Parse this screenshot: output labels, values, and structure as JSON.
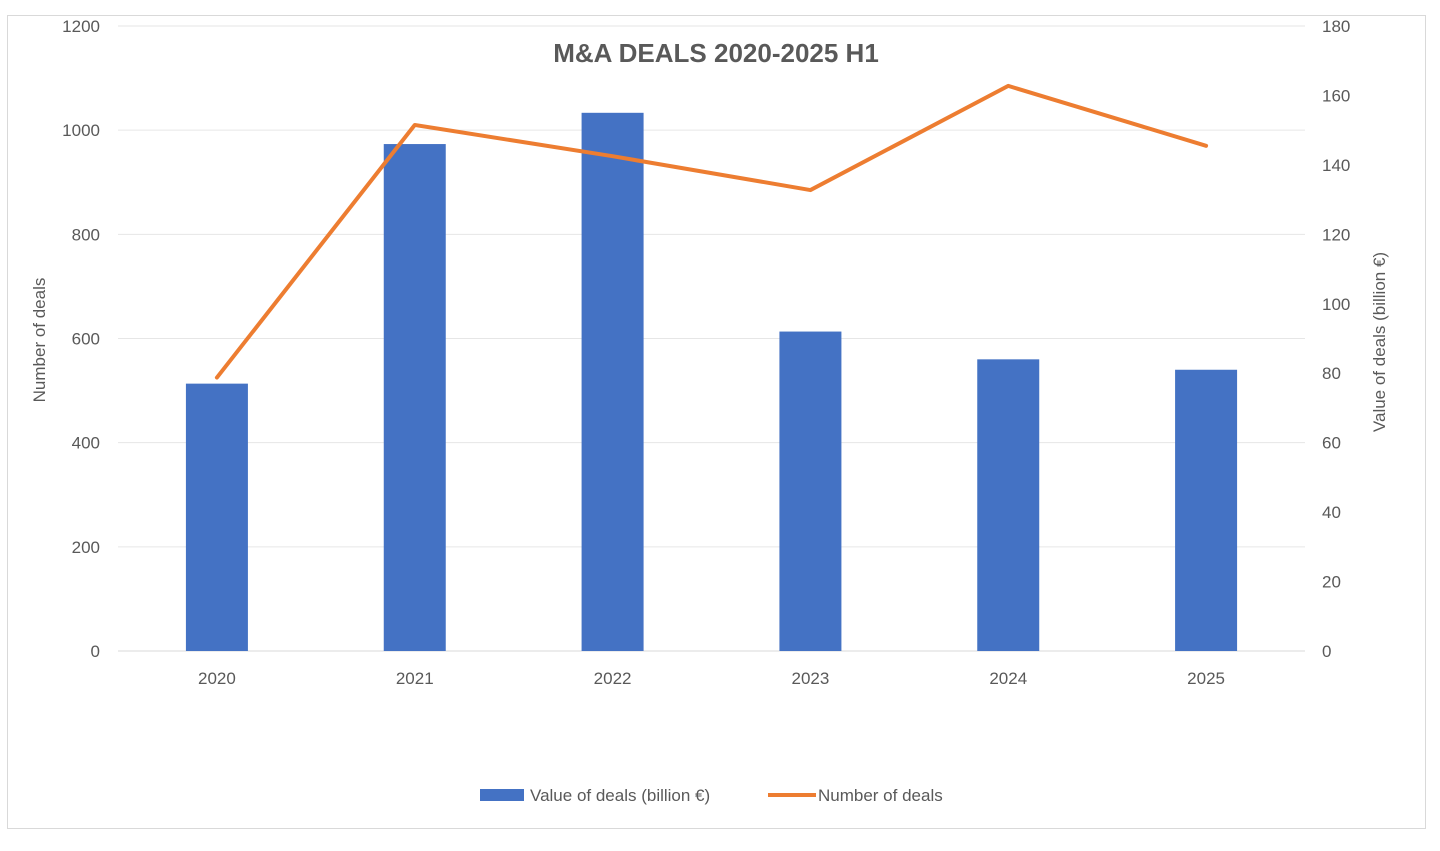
{
  "chart_data": {
    "type": "bar",
    "title": "M&A DEALS 2020-2025 H1",
    "categories": [
      "2020",
      "2021",
      "2022",
      "2023",
      "2024",
      "2025"
    ],
    "series": [
      {
        "name": "Value of deals (billion €)",
        "type": "bar",
        "axis": "right",
        "color": "#4472c4",
        "values": [
          77,
          146,
          155,
          92,
          84,
          81
        ]
      },
      {
        "name": "Number of deals",
        "type": "line",
        "axis": "left",
        "color": "#ed7d31",
        "values": [
          525,
          1010,
          950,
          885,
          1085,
          970
        ]
      }
    ],
    "y_left": {
      "label": "Number of deals",
      "ylim": [
        0,
        1200
      ],
      "ticks": [
        "0",
        "200",
        "400",
        "600",
        "800",
        "1000",
        "1200"
      ]
    },
    "y_right": {
      "label": "Value of deals (billion €)",
      "ylim": [
        0,
        180
      ],
      "ticks": [
        "0",
        "20",
        "40",
        "60",
        "80",
        "100",
        "120",
        "140",
        "160",
        "180"
      ]
    },
    "grid": true,
    "legend": "bottom"
  }
}
